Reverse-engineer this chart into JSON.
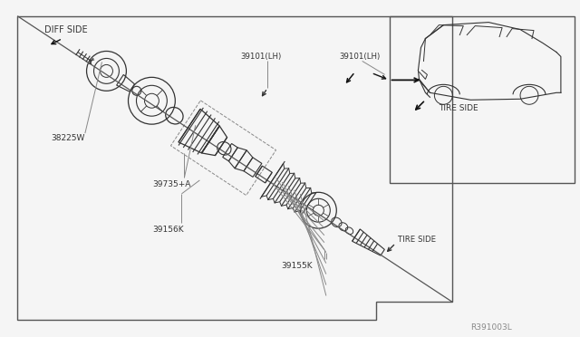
{
  "bg_color": "#f5f5f5",
  "border_color": "#555555",
  "line_color": "#333333",
  "text_color": "#333333",
  "gray_color": "#888888",
  "figsize": [
    6.4,
    3.72
  ],
  "dpi": 100,
  "labels": {
    "diff_side": "DIFF SIDE",
    "tire_side_top": "TIRE SIDE",
    "tire_side_bot": "TIRE SIDE",
    "part_38225w": "38225W",
    "part_39735a": "39735+A",
    "part_39156k": "39156K",
    "part_39101lh_1": "39101(LH)",
    "part_39101lh_2": "39101(LH)",
    "part_39155k": "39155K",
    "ref_code": "R391003L"
  }
}
